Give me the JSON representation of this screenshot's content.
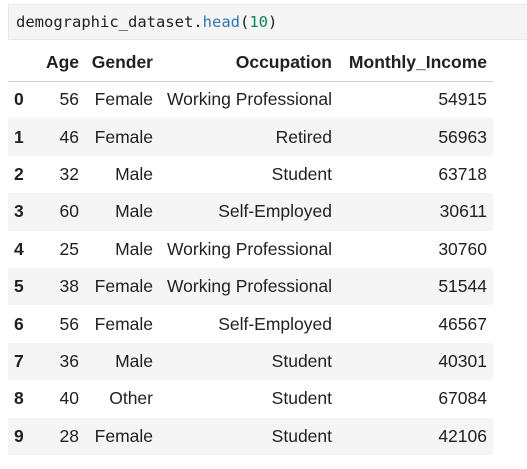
{
  "code_cell": {
    "object": "demographic_dataset",
    "dot": ".",
    "method": "head",
    "open_paren": "(",
    "arg": "10",
    "close_paren": ")"
  },
  "table": {
    "columns": [
      "",
      "Age",
      "Gender",
      "Occupation",
      "Monthly_Income"
    ],
    "rows": [
      {
        "index": "0",
        "age": "56",
        "gender": "Female",
        "occupation": "Working Professional",
        "income": "54915"
      },
      {
        "index": "1",
        "age": "46",
        "gender": "Female",
        "occupation": "Retired",
        "income": "56963"
      },
      {
        "index": "2",
        "age": "32",
        "gender": "Male",
        "occupation": "Student",
        "income": "63718"
      },
      {
        "index": "3",
        "age": "60",
        "gender": "Male",
        "occupation": "Self-Employed",
        "income": "30611"
      },
      {
        "index": "4",
        "age": "25",
        "gender": "Male",
        "occupation": "Working Professional",
        "income": "30760"
      },
      {
        "index": "5",
        "age": "38",
        "gender": "Female",
        "occupation": "Working Professional",
        "income": "51544"
      },
      {
        "index": "6",
        "age": "56",
        "gender": "Female",
        "occupation": "Self-Employed",
        "income": "46567"
      },
      {
        "index": "7",
        "age": "36",
        "gender": "Male",
        "occupation": "Student",
        "income": "40301"
      },
      {
        "index": "8",
        "age": "40",
        "gender": "Other",
        "occupation": "Student",
        "income": "67084"
      },
      {
        "index": "9",
        "age": "28",
        "gender": "Female",
        "occupation": "Student",
        "income": "42106"
      }
    ]
  },
  "colors": {
    "code_background": "#f5f5f5",
    "function_name": "#2979b8",
    "number_literal": "#098658",
    "striped_row": "#f5f5f5",
    "text": "#212121"
  }
}
